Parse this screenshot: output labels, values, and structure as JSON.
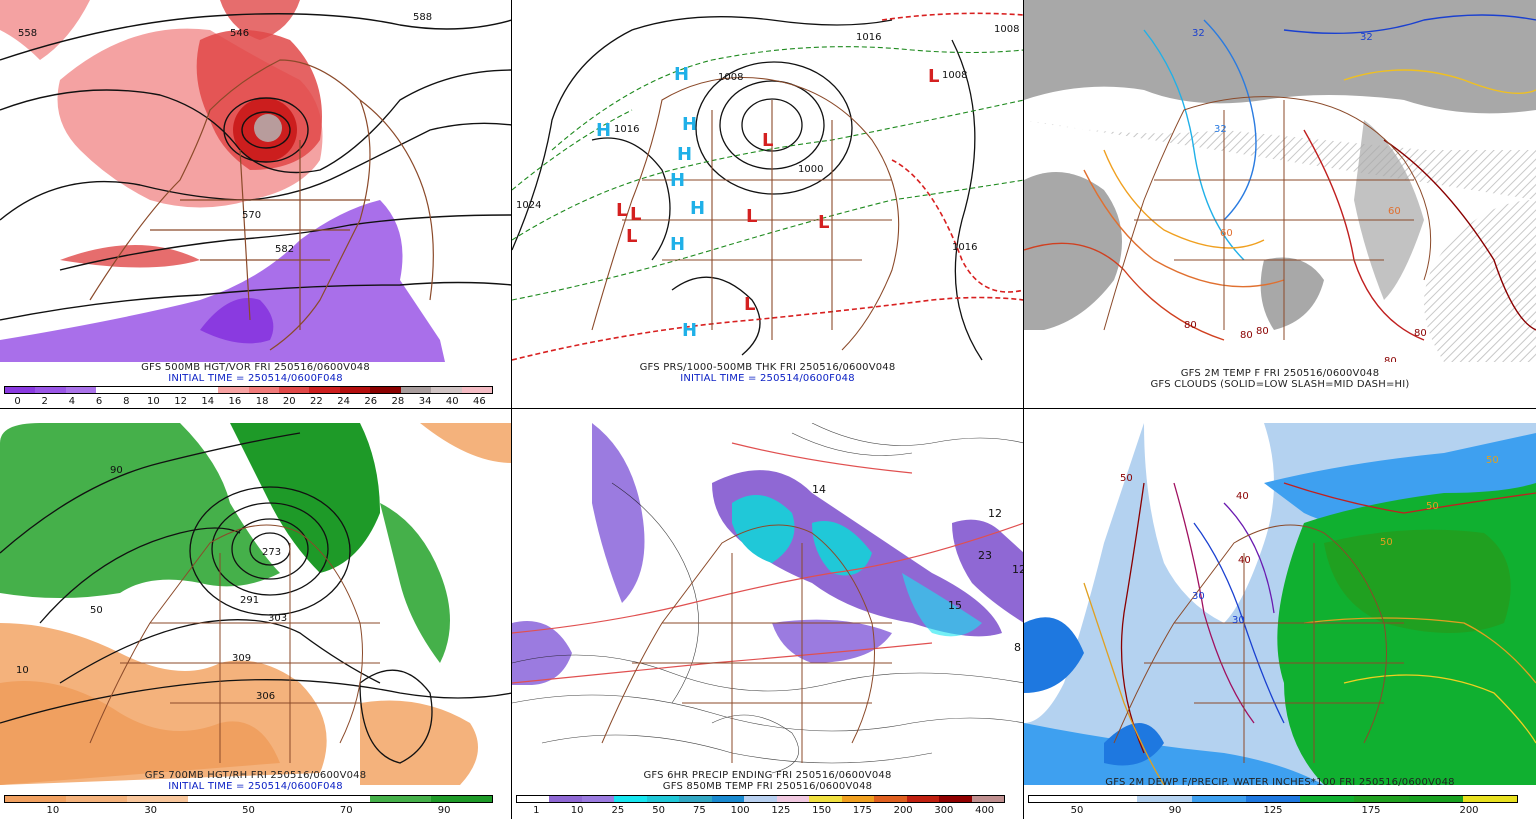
{
  "panels": [
    {
      "id": "p1",
      "caption1": "GFS 500MB HGT/VOR FRI 250516/0600V048",
      "caption2": "INITIAL TIME = 250514/0600F048",
      "scale_colors": [
        "#8a3ae0",
        "#9a56e6",
        "#ab74ea",
        "#ffffff",
        "#ffffff",
        "#ffffff",
        "#ffffff",
        "#f7a3a3",
        "#f07a7a",
        "#e04848",
        "#cc1e1e",
        "#b30e0e",
        "#8a0000",
        "#a89c9c",
        "#d0c4c4",
        "#f4bcc4"
      ],
      "scale_ticks": [
        "0",
        "2",
        "4",
        "6",
        "8",
        "10",
        "12",
        "14",
        "16",
        "18",
        "20",
        "22",
        "24",
        "26",
        "28",
        "34",
        "40",
        "46"
      ],
      "contour_labels": [
        "558",
        "546",
        "570",
        "582",
        "588"
      ]
    },
    {
      "id": "p2",
      "caption1": "GFS PRS/1000-500MB THK FRI 250516/0600V048",
      "caption2": "INITIAL TIME = 250514/0600F048",
      "isobar_labels": [
        "1016",
        "1008",
        "1024",
        "1016",
        "1016",
        "1008",
        "1008",
        "1000"
      ],
      "highs": [
        "H",
        "H",
        "H",
        "H",
        "H",
        "H",
        "H",
        "H"
      ],
      "lows": [
        "L",
        "L",
        "L",
        "L",
        "L",
        "L",
        "L",
        "L"
      ]
    },
    {
      "id": "p3",
      "caption1": "GFS 2M TEMP F FRI 250516/0600V048",
      "caption2": "GFS CLOUDS (SOLID=LOW SLASH=MID DASH=HI)",
      "temp_labels": [
        "32",
        "32",
        "32",
        "60",
        "60",
        "80",
        "80",
        "80",
        "80",
        "80"
      ]
    },
    {
      "id": "p4",
      "caption1": "GFS 700MB HGT/RH FRI 250516/0600V048",
      "caption2": "INITIAL TIME = 250514/0600F048",
      "scale_colors": [
        "#f0a060",
        "#f4b27c",
        "#f8c69c",
        "#ffffff",
        "#ffffff",
        "#ffffff",
        "#45b04a",
        "#1e9a28"
      ],
      "scale_ticks": [
        "10",
        "30",
        "50",
        "70",
        "90"
      ],
      "contour_labels": [
        "291",
        "273",
        "303",
        "309",
        "306",
        "10",
        "90",
        "50"
      ]
    },
    {
      "id": "p5",
      "caption1": "GFS 6HR PRECIP ENDING FRI 250516/0600V048",
      "caption2": "GFS 850MB TEMP FRI 250516/0600V048",
      "scale_colors": [
        "#ffffff",
        "#8f68d4",
        "#9b7be0",
        "#18e6f0",
        "#20c8d8",
        "#32a8c4",
        "#1a8ad0",
        "#b8d0f0",
        "#f0c8e0",
        "#f0e040",
        "#f0a020",
        "#e06020",
        "#c02010",
        "#900000",
        "#c09090"
      ],
      "scale_ticks": [
        "1",
        "10",
        "25",
        "50",
        "75",
        "100",
        "125",
        "150",
        "175",
        "200",
        "300",
        "400"
      ],
      "station_labels": [
        "14",
        "12",
        "23",
        "15",
        "12",
        "8"
      ]
    },
    {
      "id": "p6",
      "caption1": "GFS 2M DEWP F/PRECIP. WATER INCHES*100 FRI 250516/0600V048",
      "caption2": "",
      "scale_colors": [
        "#ffffff",
        "#ffffff",
        "#b4d2f0",
        "#3ea0f0",
        "#1e78e0",
        "#10b030",
        "#20a020",
        "#18a020",
        "#e8e020"
      ],
      "scale_ticks": [
        "50",
        "90",
        "125",
        "175",
        "200"
      ],
      "dew_labels": [
        "50",
        "40",
        "30",
        "30",
        "50",
        "40",
        "50",
        "50"
      ]
    }
  ]
}
